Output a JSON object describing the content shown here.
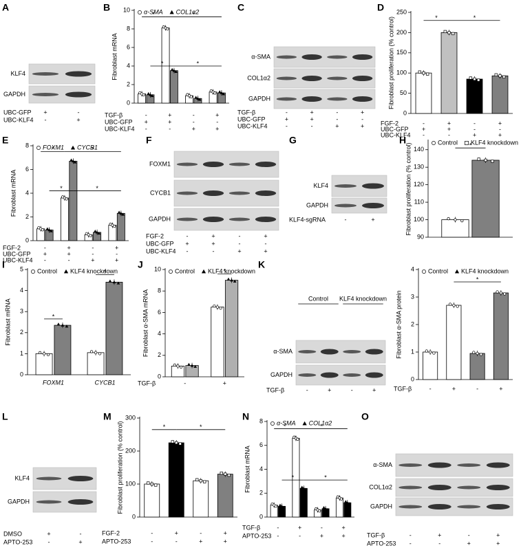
{
  "chart_data": [
    {
      "panel": "B",
      "type": "bar",
      "y_label": "Fibroblast mRNA",
      "ylim": [
        0,
        10
      ],
      "yticks": [
        0,
        2,
        4,
        6,
        8,
        10
      ],
      "italic_names": true,
      "series": [
        {
          "name": "α-SMA",
          "color": "#ffffff",
          "marker": "circle",
          "values": [
            1,
            8.1,
            0.8,
            1.2
          ]
        },
        {
          "name": "COL1α2",
          "color": "#808080",
          "marker": "triangle",
          "values": [
            0.9,
            3.5,
            0.5,
            1.1
          ]
        }
      ],
      "conditions": [
        {
          "label": "TGF-β",
          "signs": [
            "-",
            "+",
            "-",
            "+"
          ]
        },
        {
          "label": "UBC-GFP",
          "signs": [
            "+",
            "+",
            "-",
            "-"
          ]
        },
        {
          "label": "UBC-KLF4",
          "signs": [
            "-",
            "-",
            "+",
            "+"
          ]
        }
      ],
      "brackets": [
        {
          "text": "*",
          "from": [
            0,
            0
          ],
          "to": [
            1,
            0
          ],
          "y": 9.3
        },
        {
          "text": "*",
          "from": [
            1,
            0
          ],
          "to": [
            3,
            1
          ],
          "y": 9.3
        },
        {
          "text": "*",
          "from": [
            0,
            1
          ],
          "to": [
            1,
            1
          ],
          "y": 4
        },
        {
          "text": "*",
          "from": [
            1,
            1
          ],
          "to": [
            3,
            1
          ],
          "y": 4
        }
      ]
    },
    {
      "panel": "D",
      "type": "bar",
      "y_label": "Fibroblast proliferation (% control)",
      "ylim": [
        0,
        250
      ],
      "yticks": [
        0,
        50,
        100,
        150,
        200,
        250
      ],
      "series": [
        {
          "colors": [
            "#ffffff",
            "#c0c0c0",
            "#000000",
            "#808080"
          ],
          "marker": "square",
          "values": [
            100,
            200,
            85,
            93
          ]
        }
      ],
      "conditions": [
        {
          "label": "FGF-2",
          "signs": [
            "-",
            "+",
            "-",
            "+"
          ]
        },
        {
          "label": "UBC-GFP",
          "signs": [
            "+",
            "+",
            "-",
            "-"
          ]
        },
        {
          "label": "UBC-KLF4",
          "signs": [
            "-",
            "-",
            "+",
            "+"
          ]
        }
      ],
      "brackets": [
        {
          "text": "*",
          "from": [
            0,
            0
          ],
          "to": [
            1,
            0
          ],
          "y": 230
        },
        {
          "text": "*",
          "from": [
            1,
            0
          ],
          "to": [
            3,
            0
          ],
          "y": 230
        }
      ]
    },
    {
      "panel": "E",
      "type": "bar",
      "y_label": "Fibroblast mRNA",
      "ylim": [
        0,
        8
      ],
      "yticks": [
        0,
        2,
        4,
        6,
        8
      ],
      "italic_names": true,
      "series": [
        {
          "name": "FOXM1",
          "color": "#ffffff",
          "marker": "circle",
          "values": [
            1,
            3.6,
            0.5,
            1.3
          ]
        },
        {
          "name": "CYCB1",
          "color": "#808080",
          "marker": "triangle",
          "values": [
            0.9,
            6.7,
            0.7,
            2.3
          ]
        }
      ],
      "conditions": [
        {
          "label": "FGF-2",
          "signs": [
            "-",
            "+",
            "-",
            "+"
          ]
        },
        {
          "label": "UBC-GFP",
          "signs": [
            "+",
            "+",
            "-",
            "-"
          ]
        },
        {
          "label": "UBC-KLF4",
          "signs": [
            "-",
            "-",
            "+",
            "+"
          ]
        }
      ],
      "brackets": [
        {
          "text": "*",
          "from": [
            0,
            0
          ],
          "to": [
            1,
            0
          ],
          "y": 7.5
        },
        {
          "text": "*",
          "from": [
            1,
            0
          ],
          "to": [
            3,
            1
          ],
          "y": 7.5
        },
        {
          "text": "*",
          "from": [
            0,
            1
          ],
          "to": [
            1,
            1
          ],
          "y": 4.2
        },
        {
          "text": "*",
          "from": [
            1,
            1
          ],
          "to": [
            3,
            1
          ],
          "y": 4.2
        }
      ]
    },
    {
      "panel": "H",
      "type": "bar",
      "y_label": "Fibroblast proliferation (% control)",
      "ylim": [
        90,
        145
      ],
      "yticks": [
        90,
        100,
        110,
        120,
        130,
        140
      ],
      "series": [
        {
          "name": "Control",
          "color": "#ffffff",
          "marker": "circle",
          "values": [
            100
          ]
        },
        {
          "name": "KLF4 knockdown",
          "color": "#808080",
          "marker": "square",
          "values": [
            134
          ]
        }
      ],
      "brackets": [
        {
          "text": "*",
          "from": [
            0,
            0
          ],
          "to": [
            0,
            1
          ],
          "y": 141
        }
      ]
    },
    {
      "panel": "I",
      "type": "bar",
      "y_label": "Fibroblast mRNA",
      "ylim": [
        0,
        5
      ],
      "yticks": [
        0,
        1,
        2,
        3,
        4,
        5
      ],
      "categories": [
        "FOXM1",
        "CYCB1"
      ],
      "italic_categories": true,
      "series": [
        {
          "name": "Control",
          "color": "#ffffff",
          "marker": "circle",
          "values": [
            1,
            1.05
          ]
        },
        {
          "name": "KLF4 knockdown",
          "color": "#808080",
          "marker": "triangle",
          "values": [
            2.35,
            4.4
          ]
        }
      ],
      "brackets": [
        {
          "text": "*",
          "from": [
            0,
            0
          ],
          "to": [
            0,
            1
          ],
          "y": 2.65
        },
        {
          "text": "*",
          "from": [
            1,
            0
          ],
          "to": [
            1,
            1
          ],
          "y": 4.75
        }
      ]
    },
    {
      "panel": "J",
      "type": "bar",
      "y_label": "Fibroblast α-SMA mRNA",
      "ylim": [
        0,
        10
      ],
      "yticks": [
        0,
        2,
        4,
        6,
        8,
        10
      ],
      "series": [
        {
          "name": "Control",
          "color": "#ffffff",
          "marker": "circle",
          "values": [
            1,
            6.5
          ]
        },
        {
          "name": "KLF4 knockdown",
          "color": "#b0b0b0",
          "marker": "triangle",
          "values": [
            1.05,
            9
          ]
        }
      ],
      "conditions": [
        {
          "label": "TGF-β",
          "signs": [
            "-",
            "+"
          ]
        }
      ],
      "brackets": [
        {
          "text": "*",
          "from": [
            1,
            0
          ],
          "to": [
            1,
            1
          ],
          "y": 9.6
        }
      ]
    },
    {
      "type": "bar",
      "y_label": "Fibroblast α-SMA protein",
      "ylim": [
        0,
        4
      ],
      "yticks": [
        0,
        1,
        2,
        3,
        4
      ],
      "legend": [
        {
          "name": "Control",
          "marker": "circle"
        },
        {
          "name": "KLF4 knockdown",
          "marker": "triangle"
        }
      ],
      "series": [
        {
          "colors": [
            "#ffffff",
            "#ffffff",
            "#808080",
            "#808080"
          ],
          "marker": "circle",
          "values": [
            1,
            2.7,
            0.95,
            3.15
          ]
        }
      ],
      "conditions": [
        {
          "label": "TGF-β",
          "signs": [
            "-",
            "+",
            "-",
            "+"
          ]
        }
      ],
      "brackets": [
        {
          "text": "*",
          "from": [
            1,
            0
          ],
          "to": [
            3,
            0
          ],
          "y": 3.55
        }
      ]
    },
    {
      "panel": "M",
      "type": "bar",
      "y_label": "Fibroblast proliferation (% control)",
      "ylim": [
        0,
        300
      ],
      "yticks": [
        0,
        100,
        200,
        300
      ],
      "series": [
        {
          "colors": [
            "#ffffff",
            "#000000",
            "#ffffff",
            "#808080"
          ],
          "marker": "square",
          "values": [
            100,
            225,
            110,
            130
          ]
        }
      ],
      "conditions": [
        {
          "label": "FGF-2",
          "signs": [
            "-",
            "+",
            "-",
            "+"
          ]
        },
        {
          "label": "APTO-253",
          "signs": [
            "-",
            "-",
            "+",
            "+"
          ]
        }
      ],
      "brackets": [
        {
          "text": "*",
          "from": [
            0,
            0
          ],
          "to": [
            1,
            0
          ],
          "y": 265
        },
        {
          "text": "*",
          "from": [
            1,
            0
          ],
          "to": [
            3,
            0
          ],
          "y": 265
        }
      ]
    },
    {
      "panel": "N",
      "type": "bar",
      "y_label": "Fibroblast mRNA",
      "ylim": [
        0,
        8
      ],
      "yticks": [
        0,
        2,
        4,
        6,
        8
      ],
      "italic_names": true,
      "series": [
        {
          "name": "α-SMA",
          "color": "#ffffff",
          "marker": "circle",
          "values": [
            1,
            6.6,
            0.6,
            1.6
          ]
        },
        {
          "name": "COL1α2",
          "color": "#000000",
          "marker": "triangle",
          "values": [
            0.9,
            2.4,
            0.7,
            1.2
          ]
        }
      ],
      "conditions": [
        {
          "label": "TGF-β",
          "signs": [
            "-",
            "+",
            "-",
            "+"
          ]
        },
        {
          "label": "APTO-253",
          "signs": [
            "-",
            "-",
            "+",
            "+"
          ]
        }
      ],
      "brackets": [
        {
          "text": "*",
          "from": [
            0,
            0
          ],
          "to": [
            1,
            0
          ],
          "y": 7.4
        },
        {
          "text": "*",
          "from": [
            1,
            0
          ],
          "to": [
            3,
            1
          ],
          "y": 7.4
        },
        {
          "text": "*",
          "from": [
            0,
            1
          ],
          "to": [
            1,
            1
          ],
          "y": 3.1
        },
        {
          "text": "*",
          "from": [
            1,
            1
          ],
          "to": [
            3,
            1
          ],
          "y": 3.1
        }
      ]
    }
  ],
  "blots": [
    {
      "panel": "A",
      "bands": [
        "KLF4",
        "GAPDH"
      ],
      "conditions": [
        {
          "label": "UBC-GFP",
          "signs": [
            "+",
            "-"
          ]
        },
        {
          "label": "UBC-KLF4",
          "signs": [
            "-",
            "+"
          ]
        }
      ]
    },
    {
      "panel": "C",
      "bands": [
        "α-SMA",
        "COL1α2",
        "GAPDH"
      ],
      "conditions": [
        {
          "label": "TGF-β",
          "signs": [
            "-",
            "+",
            "-",
            "+"
          ]
        },
        {
          "label": "UBC-GFP",
          "signs": [
            "+",
            "+",
            "-",
            "-"
          ]
        },
        {
          "label": "UBC-KLF4",
          "signs": [
            "-",
            "-",
            "+",
            "+"
          ]
        }
      ]
    },
    {
      "panel": "F",
      "bands": [
        "FOXM1",
        "CYCB1",
        "GAPDH"
      ],
      "conditions": [
        {
          "label": "FGF-2",
          "signs": [
            "-",
            "+",
            "-",
            "+"
          ]
        },
        {
          "label": "UBC-GFP",
          "signs": [
            "+",
            "+",
            "-",
            "-"
          ]
        },
        {
          "label": "UBC-KLF4",
          "signs": [
            "-",
            "-",
            "+",
            "+"
          ]
        }
      ]
    },
    {
      "panel": "G",
      "bands": [
        "KLF4",
        "GAPDH"
      ],
      "conditions": [
        {
          "label": "KLF4-sgRNA",
          "signs": [
            "-",
            "+"
          ]
        }
      ]
    },
    {
      "panel": "K",
      "headers": [
        "Control",
        "KLF4 knockdown"
      ],
      "bands": [
        "α-SMA",
        "GAPDH"
      ],
      "conditions": [
        {
          "label": "TGF-β",
          "signs": [
            "-",
            "+",
            "-",
            "+"
          ]
        }
      ]
    },
    {
      "panel": "L",
      "bands": [
        "KLF4",
        "GAPDH"
      ],
      "conditions": [
        {
          "label": "DMSO",
          "signs": [
            "+",
            "-"
          ]
        },
        {
          "label": "APTO-253",
          "signs": [
            "-",
            "+"
          ]
        }
      ]
    },
    {
      "panel": "O",
      "bands": [
        "α-SMA",
        "COL1α2",
        "GAPDH"
      ],
      "conditions": [
        {
          "label": "TGF-β",
          "signs": [
            "-",
            "+",
            "-",
            "+"
          ]
        },
        {
          "label": "APTO-253",
          "signs": [
            "-",
            "-",
            "+",
            "+"
          ]
        }
      ]
    }
  ]
}
